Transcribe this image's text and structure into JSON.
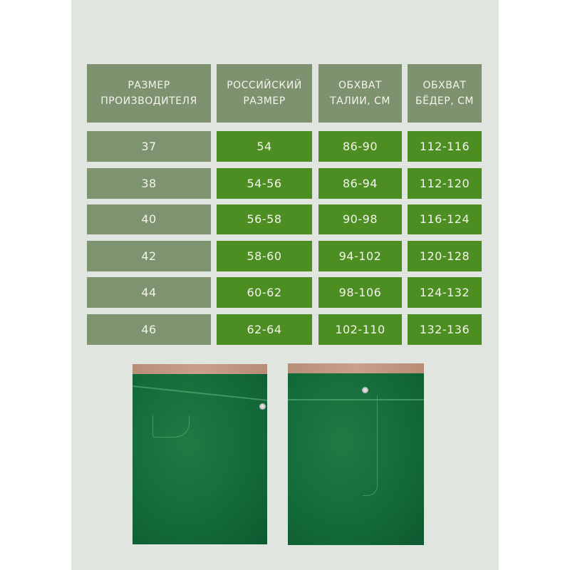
{
  "headers": [
    "РАЗМЕР\nПРОИЗВОДИТЕЛЯ",
    "РОССИЙСКИЙ\nРАЗМЕР",
    "ОБХВАТ\nТАЛИИ, СМ",
    "ОБХВАТ\nБЁДЕР, СМ"
  ],
  "rows": [
    [
      "37",
      "54",
      "86-90",
      "112-116"
    ],
    [
      "38",
      "54-56",
      "86-94",
      "112-120"
    ],
    [
      "40",
      "56-58",
      "90-98",
      "116-124"
    ],
    [
      "42",
      "58-60",
      "94-102",
      "120-128"
    ],
    [
      "44",
      "60-62",
      "98-106",
      "124-132"
    ],
    [
      "46",
      "62-64",
      "102-110",
      "132-136"
    ]
  ],
  "colors": {
    "background": "#e0e6df",
    "header": "#7f9270",
    "first_column": "#7e9370",
    "value_cells": "#4c8e22",
    "jeans": "#136a39"
  },
  "photos": [
    "green-jeans-side-view",
    "green-jeans-front-view"
  ]
}
